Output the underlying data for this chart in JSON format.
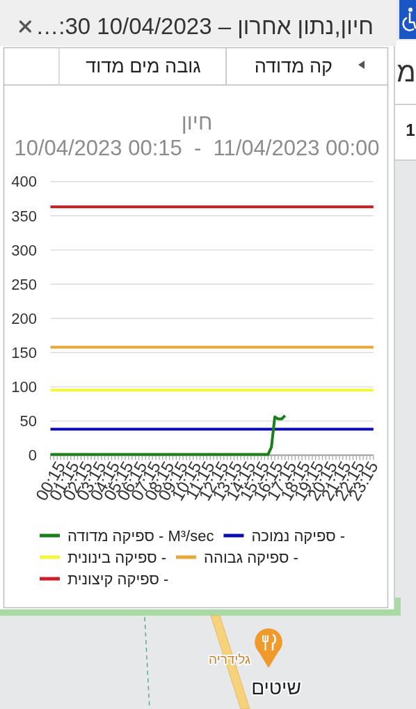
{
  "chart_data": {
    "type": "line",
    "title": "חיון",
    "subtitle": "10/04/2023 00:15  -  11/04/2023 00:00",
    "annotations": [
      "חיון,נתון אחרון – 10/04/2023 …:30",
      "קה מדודה",
      "גובה מים מדוד",
      "גלידריה",
      "שיטים",
      "מ",
      "1"
    ],
    "xlim": [
      0.25,
      24
    ],
    "xticks": [
      {
        "value": 0.25,
        "label": "00:15"
      },
      {
        "value": 0.5,
        "label": null
      },
      {
        "value": 0.75,
        "label": null
      },
      {
        "value": 1,
        "label": null
      },
      {
        "value": 1.25,
        "label": "01:15"
      },
      {
        "value": 1.5,
        "label": null
      },
      {
        "value": 1.75,
        "label": null
      },
      {
        "value": 2,
        "label": null
      },
      {
        "value": 2.25,
        "label": "02:15"
      },
      {
        "value": 2.5,
        "label": null
      },
      {
        "value": 2.75,
        "label": null
      },
      {
        "value": 3,
        "label": null
      },
      {
        "value": 3.25,
        "label": "03:15"
      },
      {
        "value": 3.5,
        "label": null
      },
      {
        "value": 3.75,
        "label": null
      },
      {
        "value": 4,
        "label": null
      },
      {
        "value": 4.25,
        "label": "04:15"
      },
      {
        "value": 4.5,
        "label": null
      },
      {
        "value": 4.75,
        "label": null
      },
      {
        "value": 5,
        "label": null
      },
      {
        "value": 5.25,
        "label": "05:15"
      },
      {
        "value": 5.5,
        "label": null
      },
      {
        "value": 5.75,
        "label": null
      },
      {
        "value": 6,
        "label": null
      },
      {
        "value": 6.25,
        "label": "06:15"
      },
      {
        "value": 6.5,
        "label": null
      },
      {
        "value": 6.75,
        "label": null
      },
      {
        "value": 7,
        "label": null
      },
      {
        "value": 7.25,
        "label": "07:15"
      },
      {
        "value": 7.5,
        "label": null
      },
      {
        "value": 7.75,
        "label": null
      },
      {
        "value": 8,
        "label": null
      },
      {
        "value": 8.25,
        "label": "08:15"
      },
      {
        "value": 8.5,
        "label": null
      },
      {
        "value": 8.75,
        "label": null
      },
      {
        "value": 9,
        "label": null
      },
      {
        "value": 9.25,
        "label": "09:15"
      },
      {
        "value": 9.5,
        "label": null
      },
      {
        "value": 9.75,
        "label": null
      },
      {
        "value": 10,
        "label": null
      },
      {
        "value": 10.25,
        "label": "10:15"
      },
      {
        "value": 10.5,
        "label": null
      },
      {
        "value": 10.75,
        "label": null
      },
      {
        "value": 11,
        "label": null
      },
      {
        "value": 11.25,
        "label": "11:15"
      },
      {
        "value": 11.5,
        "label": null
      },
      {
        "value": 11.75,
        "label": null
      },
      {
        "value": 12,
        "label": null
      },
      {
        "value": 12.25,
        "label": "12:15"
      },
      {
        "value": 12.5,
        "label": null
      },
      {
        "value": 12.75,
        "label": null
      },
      {
        "value": 13,
        "label": null
      },
      {
        "value": 13.25,
        "label": "13:15"
      },
      {
        "value": 13.5,
        "label": null
      },
      {
        "value": 13.75,
        "label": null
      },
      {
        "value": 14,
        "label": null
      },
      {
        "value": 14.25,
        "label": "14:15"
      },
      {
        "value": 14.5,
        "label": null
      },
      {
        "value": 14.75,
        "label": null
      },
      {
        "value": 15,
        "label": null
      },
      {
        "value": 15.25,
        "label": "15:15"
      },
      {
        "value": 15.5,
        "label": null
      },
      {
        "value": 15.75,
        "label": null
      },
      {
        "value": 16,
        "label": null
      },
      {
        "value": 16.25,
        "label": "16:15"
      },
      {
        "value": 16.5,
        "label": null
      },
      {
        "value": 16.75,
        "label": null
      },
      {
        "value": 17,
        "label": null
      },
      {
        "value": 17.25,
        "label": "17:15"
      },
      {
        "value": 17.5,
        "label": null
      },
      {
        "value": 17.75,
        "label": null
      },
      {
        "value": 18,
        "label": null
      },
      {
        "value": 18.25,
        "label": "18:15"
      },
      {
        "value": 18.5,
        "label": null
      },
      {
        "value": 18.75,
        "label": null
      },
      {
        "value": 19,
        "label": null
      },
      {
        "value": 19.25,
        "label": "19:15"
      },
      {
        "value": 19.5,
        "label": null
      },
      {
        "value": 19.75,
        "label": null
      },
      {
        "value": 20,
        "label": null
      },
      {
        "value": 20.25,
        "label": "20:15"
      },
      {
        "value": 20.5,
        "label": null
      },
      {
        "value": 20.75,
        "label": null
      },
      {
        "value": 21,
        "label": null
      },
      {
        "value": 21.25,
        "label": "21:15"
      },
      {
        "value": 21.5,
        "label": null
      },
      {
        "value": 21.75,
        "label": null
      },
      {
        "value": 22,
        "label": null
      },
      {
        "value": 22.25,
        "label": "22:15"
      },
      {
        "value": 22.5,
        "label": null
      },
      {
        "value": 22.75,
        "label": null
      },
      {
        "value": 23,
        "label": null
      },
      {
        "value": 23.25,
        "label": "23:15"
      },
      {
        "value": 23.5,
        "label": null
      },
      {
        "value": 23.75,
        "label": null
      },
      {
        "value": 24,
        "label": null
      }
    ],
    "ylim": [
      0,
      400
    ],
    "yticks": [
      0,
      50,
      100,
      150,
      200,
      250,
      300,
      350,
      400
    ],
    "grid": "y",
    "legend": "bottom",
    "series": [
      {
        "name": "ספיקה מדודה - M³/sec",
        "color": "#1a7f1a",
        "x": [
          0.25,
          16.25,
          16.5,
          16.75,
          17,
          17.25,
          17.5
        ],
        "values": [
          1,
          1,
          12,
          56,
          53,
          53,
          58
        ]
      },
      {
        "name": "ספיקה נמוכה -",
        "color": "#0c0cb0",
        "x": [
          0.25,
          24
        ],
        "values": [
          38,
          38
        ]
      },
      {
        "name": "ספיקה בינונית -",
        "color": "#f5f53a",
        "x": [
          0.25,
          24
        ],
        "values": [
          95,
          95
        ]
      },
      {
        "name": "ספיקה גבוהה -",
        "color": "#eaa63a",
        "x": [
          0.25,
          24
        ],
        "values": [
          158,
          158
        ]
      },
      {
        "name": "ספיקה קיצונית -",
        "color": "#cc2027",
        "x": [
          0.25,
          24
        ],
        "values": [
          363,
          363
        ]
      }
    ]
  }
}
